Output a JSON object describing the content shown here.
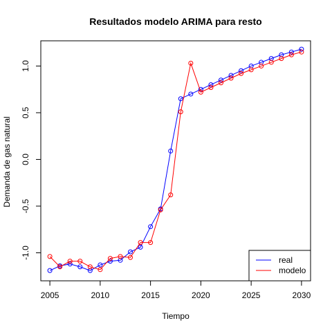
{
  "chart_data": {
    "type": "line",
    "title": "Resultados modelo ARIMA para resto",
    "xlabel": "Tiempo",
    "ylabel": "Demanda de gas natural",
    "xlim": [
      2004.1,
      2030.9
    ],
    "ylim": [
      -1.3,
      1.27
    ],
    "x_ticks": [
      "2005",
      "2010",
      "2015",
      "2020",
      "2025",
      "2030"
    ],
    "y_ticks": [
      "-1.0",
      "-0.5",
      "0.0",
      "0.5",
      "1.0"
    ],
    "x": [
      2005,
      2006,
      2007,
      2008,
      2009,
      2010,
      2011,
      2012,
      2013,
      2014,
      2015,
      2016,
      2017,
      2018,
      2019,
      2020,
      2021,
      2022,
      2023,
      2024,
      2025,
      2026,
      2027,
      2028,
      2029,
      2030
    ],
    "legend_position": "bottom-right",
    "series": [
      {
        "name": "real",
        "color": "#0000ff",
        "values": [
          -1.19,
          -1.14,
          -1.12,
          -1.15,
          -1.19,
          -1.13,
          -1.09,
          -1.08,
          -0.99,
          -0.94,
          -0.72,
          -0.53,
          0.09,
          0.65,
          0.7,
          0.75,
          0.8,
          0.85,
          0.9,
          0.95,
          1.0,
          1.04,
          1.08,
          1.12,
          1.15,
          1.18
        ]
      },
      {
        "name": "modelo",
        "color": "#ff0000",
        "values": [
          -1.04,
          -1.15,
          -1.09,
          -1.09,
          -1.15,
          -1.18,
          -1.06,
          -1.04,
          -1.05,
          -0.89,
          -0.89,
          -0.54,
          -0.38,
          0.51,
          1.03,
          0.72,
          0.77,
          0.82,
          0.87,
          0.92,
          0.96,
          1.0,
          1.04,
          1.08,
          1.12,
          1.15
        ]
      }
    ]
  }
}
